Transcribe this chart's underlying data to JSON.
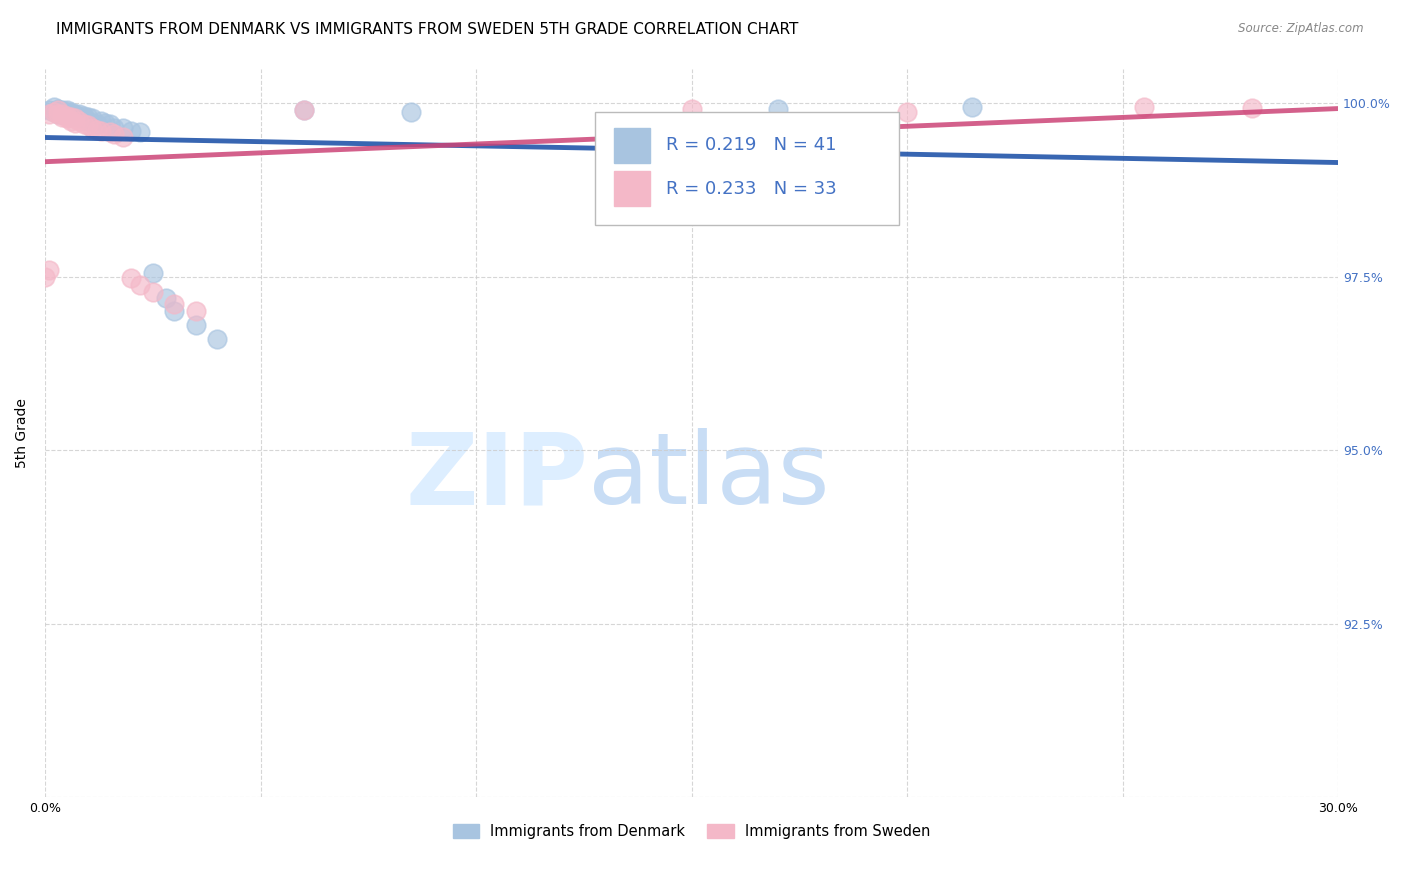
{
  "title": "IMMIGRANTS FROM DENMARK VS IMMIGRANTS FROM SWEDEN 5TH GRADE CORRELATION CHART",
  "source": "Source: ZipAtlas.com",
  "ylabel": "5th Grade",
  "xlim": [
    0.0,
    0.3
  ],
  "ylim": [
    0.9,
    1.005
  ],
  "xticks": [
    0.0,
    0.05,
    0.1,
    0.15,
    0.2,
    0.25,
    0.3
  ],
  "xticklabels": [
    "0.0%",
    "",
    "",
    "",
    "",
    "",
    "30.0%"
  ],
  "yticks": [
    0.9,
    0.925,
    0.95,
    0.975,
    1.0
  ],
  "yticklabels": [
    "",
    "92.5%",
    "95.0%",
    "97.5%",
    "100.0%"
  ],
  "denmark_color": "#a8c4e0",
  "sweden_color": "#f4b8c8",
  "denmark_line_color": "#2255aa",
  "sweden_line_color": "#cc4477",
  "R_denmark": 0.219,
  "N_denmark": 41,
  "R_sweden": 0.233,
  "N_sweden": 33,
  "legend_denmark": "Immigrants from Denmark",
  "legend_sweden": "Immigrants from Sweden",
  "denmark_x": [
    0.001,
    0.002,
    0.002,
    0.003,
    0.003,
    0.003,
    0.004,
    0.004,
    0.004,
    0.005,
    0.005,
    0.005,
    0.006,
    0.006,
    0.006,
    0.007,
    0.007,
    0.008,
    0.008,
    0.009,
    0.009,
    0.01,
    0.01,
    0.011,
    0.012,
    0.013,
    0.014,
    0.015,
    0.016,
    0.018,
    0.02,
    0.022,
    0.025,
    0.028,
    0.03,
    0.035,
    0.04,
    0.06,
    0.085,
    0.17,
    0.215
  ],
  "denmark_y": [
    0.999,
    0.9995,
    0.9988,
    0.9992,
    0.9988,
    0.9985,
    0.999,
    0.9988,
    0.9985,
    0.999,
    0.9988,
    0.9985,
    0.9988,
    0.9985,
    0.9982,
    0.9985,
    0.9982,
    0.9985,
    0.998,
    0.9982,
    0.9978,
    0.998,
    0.9975,
    0.9978,
    0.997,
    0.9975,
    0.9972,
    0.997,
    0.9965,
    0.9965,
    0.996,
    0.9958,
    0.9755,
    0.972,
    0.97,
    0.968,
    0.966,
    0.999,
    0.9988,
    0.9992,
    0.9995
  ],
  "sweden_x": [
    0.001,
    0.002,
    0.003,
    0.003,
    0.004,
    0.004,
    0.005,
    0.005,
    0.006,
    0.006,
    0.007,
    0.007,
    0.008,
    0.009,
    0.01,
    0.011,
    0.012,
    0.013,
    0.015,
    0.016,
    0.018,
    0.02,
    0.022,
    0.025,
    0.03,
    0.035,
    0.06,
    0.15,
    0.2,
    0.255,
    0.28,
    0.0,
    0.001
  ],
  "sweden_y": [
    0.9985,
    0.9988,
    0.999,
    0.9985,
    0.9985,
    0.998,
    0.9982,
    0.9978,
    0.998,
    0.9975,
    0.9978,
    0.9972,
    0.9975,
    0.997,
    0.9968,
    0.9965,
    0.9962,
    0.996,
    0.9958,
    0.9955,
    0.9952,
    0.9748,
    0.9738,
    0.9728,
    0.971,
    0.97,
    0.999,
    0.9992,
    0.9988,
    0.9995,
    0.9993,
    0.975,
    0.976
  ],
  "background_color": "#ffffff",
  "grid_color": "#cccccc",
  "title_fontsize": 11,
  "axis_label_fontsize": 10,
  "tick_fontsize": 9,
  "right_label_color": "#4472c4",
  "watermark_zip": "ZIP",
  "watermark_atlas": "atlas",
  "watermark_color": "#ddeeff"
}
